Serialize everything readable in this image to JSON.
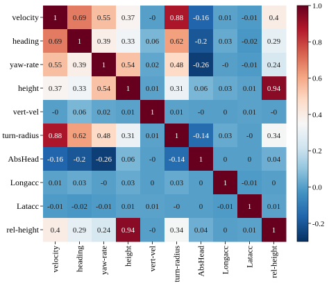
{
  "chart_data": {
    "type": "heatmap",
    "title": "",
    "xlabel": "",
    "ylabel": "",
    "rows": [
      "velocity",
      "heading",
      "yaw-rate",
      "height",
      "vert-vel",
      "turn-radius",
      "AbsHead",
      "Longacc",
      "Latacc",
      "rel-height"
    ],
    "columns": [
      "velocity",
      "heading",
      "yaw-rate",
      "height",
      "vert-vel",
      "turn-radius",
      "AbsHead",
      "Longacc",
      "Latacc",
      "rel-height"
    ],
    "cells": [
      [
        "1",
        "0.69",
        "0.55",
        "0.37",
        "-0",
        "0.88",
        "-0.16",
        "0.01",
        "-0.01",
        "0.4"
      ],
      [
        "0.69",
        "1",
        "0.39",
        "0.33",
        "0.06",
        "0.62",
        "-0.2",
        "0.03",
        "-0.02",
        "0.29"
      ],
      [
        "0.55",
        "0.39",
        "1",
        "0.54",
        "0.02",
        "0.48",
        "-0.26",
        "-0",
        "-0.01",
        "0.24"
      ],
      [
        "0.37",
        "0.33",
        "0.54",
        "1",
        "0.01",
        "0.31",
        "0.06",
        "0.03",
        "0.01",
        "0.94"
      ],
      [
        "-0",
        "0.06",
        "0.02",
        "0.01",
        "1",
        "0.01",
        "-0",
        "0",
        "0.01",
        "-0"
      ],
      [
        "0.88",
        "0.62",
        "0.48",
        "0.31",
        "0.01",
        "1",
        "-0.14",
        "0.03",
        "-0",
        "0.34"
      ],
      [
        "-0.16",
        "-0.2",
        "-0.26",
        "0.06",
        "-0",
        "-0.14",
        "1",
        "0",
        "0",
        "0.04"
      ],
      [
        "0.01",
        "0.03",
        "-0",
        "0.03",
        "0",
        "0.03",
        "0",
        "1",
        "-0.01",
        "0"
      ],
      [
        "-0.01",
        "-0.02",
        "-0.01",
        "0.01",
        "0.01",
        "-0",
        "0",
        "-0.01",
        "1",
        "0.01"
      ],
      [
        "0.4",
        "0.29",
        "0.24",
        "0.94",
        "-0",
        "0.34",
        "0.04",
        "0",
        "0.01",
        "1"
      ]
    ],
    "colorbar": {
      "min": -0.3,
      "max": 1.0,
      "ticks": [
        "-0.2",
        "0.0",
        "0.2",
        "0.4",
        "0.6",
        "0.8",
        "1.0"
      ],
      "colormap": "RdBu_r",
      "low_color": "#053061",
      "mid_color": "#f7f7f7",
      "high_color": "#67001f"
    }
  }
}
